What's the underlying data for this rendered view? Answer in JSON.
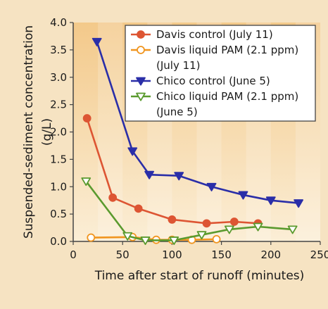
{
  "chart_data": {
    "type": "line",
    "xlabel": "Time after start of runoff (minutes)",
    "ylabel": "Suspended-sediment concentration (g/L)",
    "xlim": [
      0,
      250
    ],
    "ylim": [
      0,
      4.0
    ],
    "x_ticks": [
      "0",
      "50",
      "100",
      "150",
      "200",
      "250"
    ],
    "y_ticks": [
      "0.0",
      "0.5",
      "1.0",
      "1.5",
      "2.0",
      "2.5",
      "3.0",
      "3.5",
      "4.0"
    ],
    "grid": false,
    "legend_position": "top-right",
    "series": [
      {
        "name_lines": [
          "Davis control (July 11)"
        ],
        "color": "#dd5533",
        "marker": "circle-filled",
        "points": [
          [
            14,
            2.25
          ],
          [
            40,
            0.8
          ],
          [
            66,
            0.6
          ],
          [
            100,
            0.4
          ],
          [
            135,
            0.33
          ],
          [
            163,
            0.36
          ],
          [
            187,
            0.33
          ]
        ]
      },
      {
        "name_lines": [
          "Davis liquid PAM (2.1 ppm)",
          "(July 11)"
        ],
        "color": "#f0951f",
        "marker": "circle-open",
        "points": [
          [
            18,
            0.07
          ],
          [
            60,
            0.08
          ],
          [
            84,
            0.03
          ],
          [
            100,
            0.03
          ],
          [
            120,
            0.03
          ],
          [
            145,
            0.04
          ]
        ]
      },
      {
        "name_lines": [
          "Chico control (June 5)"
        ],
        "color": "#2a2ea8",
        "marker": "triangle-down-filled",
        "points": [
          [
            24,
            3.65
          ],
          [
            60,
            1.65
          ],
          [
            77,
            1.22
          ],
          [
            107,
            1.2
          ],
          [
            140,
            1.0
          ],
          [
            172,
            0.85
          ],
          [
            200,
            0.75
          ],
          [
            228,
            0.7
          ]
        ]
      },
      {
        "name_lines": [
          "Chico liquid PAM (2.1 ppm)",
          "(June 5)"
        ],
        "color": "#5a9a2e",
        "marker": "triangle-down-open",
        "points": [
          [
            13,
            1.1
          ],
          [
            55,
            0.1
          ],
          [
            73,
            0.02
          ],
          [
            102,
            0.02
          ],
          [
            130,
            0.12
          ],
          [
            158,
            0.22
          ],
          [
            187,
            0.27
          ],
          [
            222,
            0.22
          ]
        ]
      }
    ]
  }
}
